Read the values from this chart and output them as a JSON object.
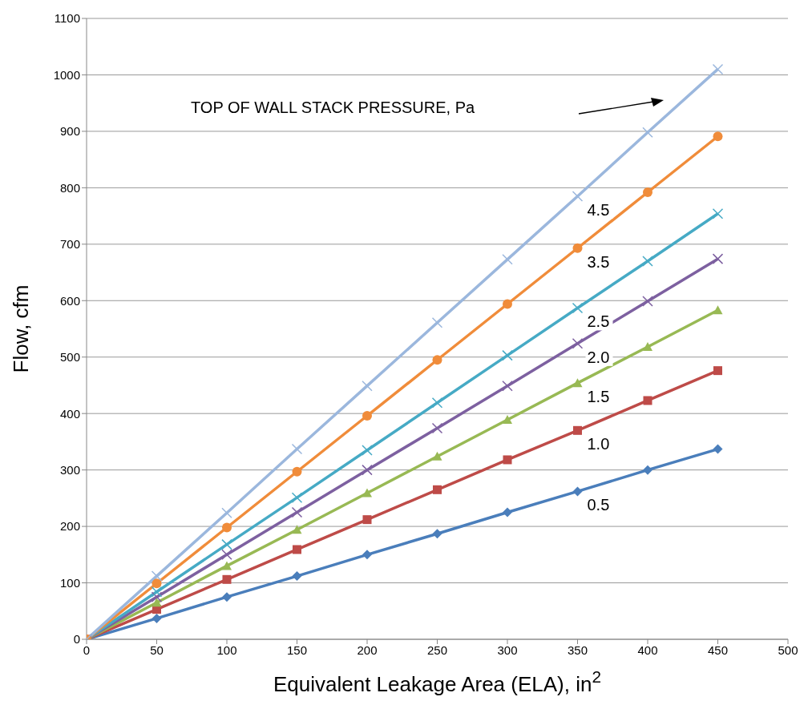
{
  "chart_data": {
    "type": "line",
    "xlabel": "Equivalent Leakage Area (ELA), in$^{2}$",
    "ylabel": "Flow, cfm",
    "annotations": [
      "TOP OF WALL STACK PRESSURE, Pa"
    ],
    "x": [
      0,
      50,
      100,
      150,
      200,
      250,
      300,
      350,
      400,
      450
    ],
    "xlim": [
      0,
      500
    ],
    "xticks": [
      0,
      50,
      100,
      150,
      200,
      250,
      300,
      350,
      400,
      450,
      500
    ],
    "ylim": [
      0,
      1100
    ],
    "yticks": [
      0,
      100,
      200,
      300,
      400,
      500,
      600,
      700,
      800,
      900,
      1000,
      1100
    ],
    "grid": "y",
    "series": [
      {
        "name": "0.5",
        "color": "#4a7ebb",
        "marker": "diamond",
        "values": [
          0,
          37,
          75,
          112,
          150,
          187,
          225,
          262,
          300,
          337
        ]
      },
      {
        "name": "1.0",
        "color": "#be4b48",
        "marker": "square",
        "values": [
          0,
          53,
          106,
          159,
          212,
          265,
          318,
          370,
          423,
          476
        ]
      },
      {
        "name": "1.5",
        "color": "#98b954",
        "marker": "triangle",
        "values": [
          0,
          65,
          130,
          194,
          259,
          324,
          389,
          454,
          518,
          583
        ]
      },
      {
        "name": "2.0",
        "color": "#7d60a0",
        "marker": "cross",
        "values": [
          0,
          75,
          150,
          225,
          300,
          374,
          449,
          524,
          599,
          674
        ]
      },
      {
        "name": "2.5",
        "color": "#46aac5",
        "marker": "cross",
        "values": [
          0,
          84,
          168,
          251,
          335,
          419,
          503,
          587,
          670,
          754
        ]
      },
      {
        "name": "3.5",
        "color": "#f08c3a",
        "marker": "circle",
        "values": [
          0,
          99,
          198,
          297,
          396,
          495,
          594,
          693,
          792,
          891
        ]
      },
      {
        "name": "4.5",
        "color": "#9bb7dd",
        "marker": "cross",
        "values": [
          0,
          112,
          224,
          337,
          449,
          561,
          673,
          785,
          898,
          1010
        ]
      }
    ]
  }
}
